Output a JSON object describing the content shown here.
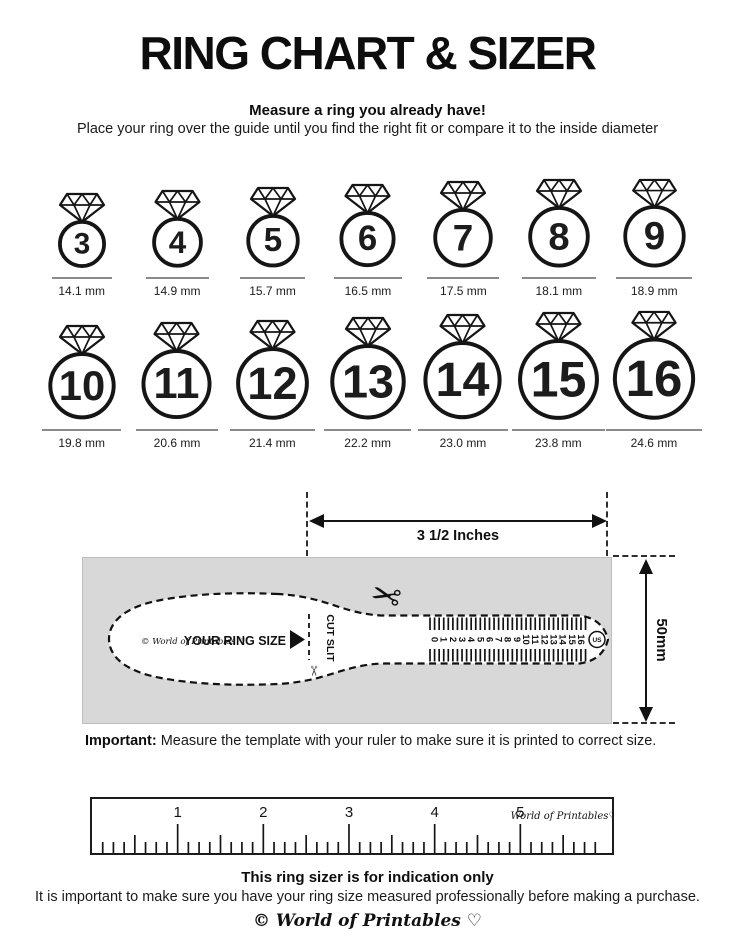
{
  "title": "RING CHART & SIZER",
  "intro": {
    "headline": "Measure a ring you already have!",
    "description": "Place your ring over the guide until you find the right fit or compare it to the inside diameter"
  },
  "ring_chart": {
    "rows": [
      [
        {
          "size": "3",
          "mm": 14.1,
          "label": "14.1 mm"
        },
        {
          "size": "4",
          "mm": 14.9,
          "label": "14.9 mm"
        },
        {
          "size": "5",
          "mm": 15.7,
          "label": "15.7 mm"
        },
        {
          "size": "6",
          "mm": 16.5,
          "label": "16.5 mm"
        },
        {
          "size": "7",
          "mm": 17.5,
          "label": "17.5 mm"
        },
        {
          "size": "8",
          "mm": 18.1,
          "label": "18.1 mm"
        },
        {
          "size": "9",
          "mm": 18.9,
          "label": "18.9 mm"
        }
      ],
      [
        {
          "size": "10",
          "mm": 19.8,
          "label": "19.8 mm"
        },
        {
          "size": "11",
          "mm": 20.6,
          "label": "20.6 mm"
        },
        {
          "size": "12",
          "mm": 21.4,
          "label": "21.4 mm"
        },
        {
          "size": "13",
          "mm": 22.2,
          "label": "22.2 mm"
        },
        {
          "size": "14",
          "mm": 23.0,
          "label": "23.0 mm"
        },
        {
          "size": "15",
          "mm": 23.8,
          "label": "23.8 mm"
        },
        {
          "size": "16",
          "mm": 24.6,
          "label": "24.6 mm"
        }
      ]
    ]
  },
  "sizer": {
    "width_label": "3 1/2 Inches",
    "height_label": "50mm",
    "inner_brand": "© World of Printables ♡",
    "your_ring_size": "YOUR RING SIZE",
    "cut_slit": "CUT SLIT",
    "scissors_icon": "✂",
    "scale_numbers": [
      "0",
      "1",
      "2",
      "3",
      "4",
      "5",
      "6",
      "7",
      "8",
      "9",
      "10",
      "11",
      "12",
      "13",
      "14",
      "15",
      "16"
    ],
    "us_label": "US",
    "colors": {
      "panel_gray": "#d8d8d8",
      "ink": "#111111"
    }
  },
  "important": {
    "label": "Important:",
    "text": " Measure the template with your ruler to make sure it is printed to correct size."
  },
  "ruler": {
    "numbers": [
      "1",
      "2",
      "3",
      "4",
      "5"
    ],
    "brand": "World of Printables♡"
  },
  "footer": {
    "bold": "This ring sizer is for indication only",
    "text": "It is important to make sure you have your ring size measured professionally before making a purchase.",
    "logo": "© World of Printables ♡"
  }
}
